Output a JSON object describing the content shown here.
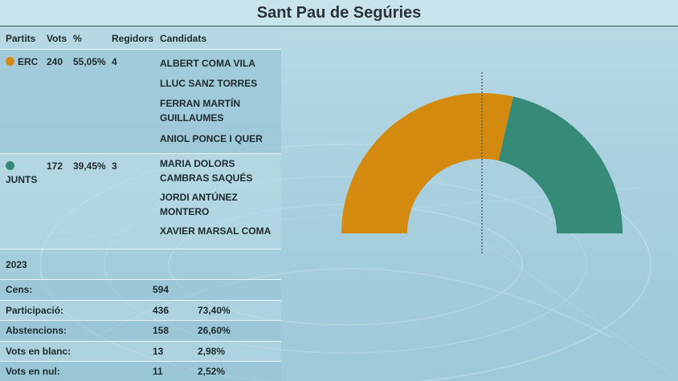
{
  "title": "Sant Pau de Segúries",
  "table": {
    "headers": {
      "party": "Partits",
      "votes": "Vots",
      "pct": "%",
      "seats": "Regidors",
      "candidates": "Candidats"
    }
  },
  "parties": [
    {
      "name": "ERC",
      "votes": "240",
      "pct": "55,05%",
      "seats": "4",
      "color": "#d48a0f",
      "candidates": [
        "ALBERT COMA VILA",
        "LLUC SANZ TORRES",
        "FERRAN MARTÍN GUILLAUMES",
        "ANIOL PONCE I QUER"
      ]
    },
    {
      "name": "JUNTS",
      "votes": "172",
      "pct": "39,45%",
      "seats": "3",
      "color": "#368a78",
      "candidates": [
        "MARIA DOLORS CAMBRAS SAQUÉS",
        "JORDI ANTÚNEZ MONTERO",
        "XAVIER MARSAL COMA"
      ]
    }
  ],
  "summary": {
    "year": "2023",
    "rows": [
      {
        "label": "Cens:",
        "number": "594",
        "pct": ""
      },
      {
        "label": "Participació:",
        "number": "436",
        "pct": "73,40%"
      },
      {
        "label": "Abstencions:",
        "number": "158",
        "pct": "26,60%"
      },
      {
        "label": "Vots en blanc:",
        "number": "13",
        "pct": "2,98%"
      },
      {
        "label": "Vots en nul:",
        "number": "11",
        "pct": "2,52%"
      }
    ]
  },
  "chart_data": {
    "type": "pie",
    "variant": "half-donut (hemicycle)",
    "categories": [
      "ERC",
      "JUNTS"
    ],
    "values": [
      4,
      3
    ],
    "colors": [
      "#d48a0f",
      "#368a78"
    ],
    "majority_line": true,
    "title": ""
  }
}
